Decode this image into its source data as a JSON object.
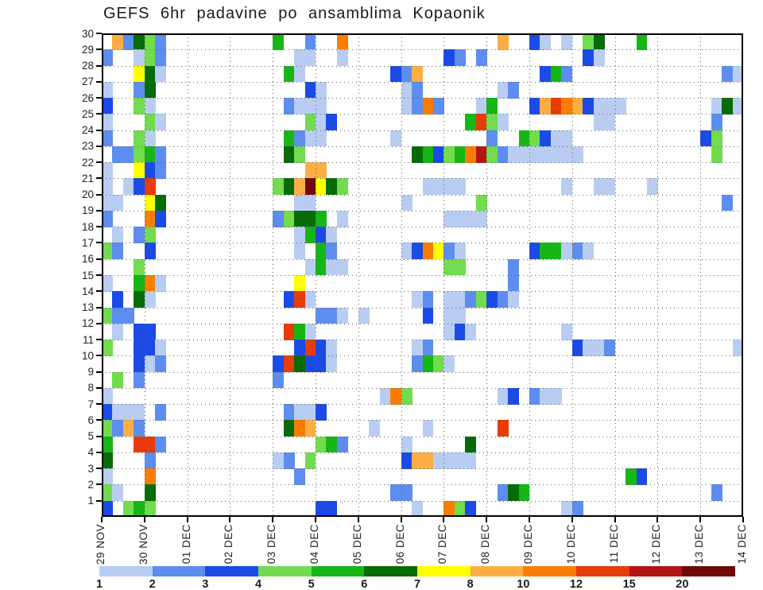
{
  "title": "GEFS 6hr padavine po ansamblima Kopaonik",
  "chart_data": {
    "type": "heatmap",
    "title": "GEFS 6hr padavine po ansamblima Kopaonik",
    "description_visible": "ensemble members (1-30) vs time (6hr steps), colored by 6hr precipitation amount",
    "grid": true,
    "legend_position": "bottom",
    "x_axis": {
      "tick_labels": [
        "29 NOV",
        "30 NOV",
        "01 DEC",
        "02 DEC",
        "03 DEC",
        "04 DEC",
        "05 DEC",
        "06 DEC",
        "07 DEC",
        "08 DEC",
        "09 DEC",
        "10 DEC",
        "11 DEC",
        "12 DEC",
        "13 DEC",
        "14 DEC"
      ],
      "columns_per_day": 4,
      "n_columns": 60
    },
    "y_axis": {
      "tick_labels": [
        "30",
        "29",
        "28",
        "27",
        "26",
        "25",
        "24",
        "23",
        "22",
        "21",
        "20",
        "19",
        "18",
        "17",
        "16",
        "15",
        "14",
        "13",
        "12",
        "11",
        "10",
        "9",
        "8",
        "7",
        "6",
        "5",
        "4",
        "3",
        "2",
        "1"
      ],
      "n_rows": 30
    },
    "colorbar": {
      "tick_labels": [
        "1",
        "2",
        "3",
        "4",
        "5",
        "6",
        "7",
        "8",
        "10",
        "12",
        "15",
        "20"
      ],
      "colors": [
        "#b9cdf3",
        "#5e8df0",
        "#1b4ae6",
        "#72dc4e",
        "#16b616",
        "#076b07",
        "#ffff00",
        "#fcae44",
        "#fa7d02",
        "#e73c06",
        "#b31414",
        "#700909"
      ]
    },
    "cells": [
      [
        30,
        1,
        7
      ],
      [
        30,
        2,
        1
      ],
      [
        30,
        3,
        5
      ],
      [
        30,
        4,
        3
      ],
      [
        30,
        5,
        1
      ],
      [
        30,
        16,
        4
      ],
      [
        30,
        19,
        1
      ],
      [
        30,
        22,
        8
      ],
      [
        30,
        37,
        7
      ],
      [
        30,
        40,
        2
      ],
      [
        30,
        41,
        0
      ],
      [
        30,
        43,
        0
      ],
      [
        30,
        45,
        3
      ],
      [
        30,
        46,
        5
      ],
      [
        30,
        50,
        4
      ],
      [
        29,
        0,
        1
      ],
      [
        29,
        3,
        0
      ],
      [
        29,
        4,
        3
      ],
      [
        29,
        5,
        1
      ],
      [
        29,
        18,
        0
      ],
      [
        29,
        19,
        0
      ],
      [
        29,
        22,
        0
      ],
      [
        29,
        32,
        2
      ],
      [
        29,
        33,
        1
      ],
      [
        29,
        35,
        1
      ],
      [
        29,
        45,
        2
      ],
      [
        29,
        46,
        0
      ],
      [
        28,
        3,
        6
      ],
      [
        28,
        4,
        5
      ],
      [
        28,
        5,
        0
      ],
      [
        28,
        17,
        4
      ],
      [
        28,
        18,
        0
      ],
      [
        28,
        27,
        2
      ],
      [
        28,
        28,
        1
      ],
      [
        28,
        29,
        7
      ],
      [
        28,
        41,
        2
      ],
      [
        28,
        42,
        4
      ],
      [
        28,
        43,
        1
      ],
      [
        28,
        58,
        1
      ],
      [
        28,
        59,
        0
      ],
      [
        27,
        0,
        0
      ],
      [
        27,
        3,
        1
      ],
      [
        27,
        4,
        5
      ],
      [
        27,
        19,
        2
      ],
      [
        27,
        20,
        0
      ],
      [
        27,
        28,
        0
      ],
      [
        27,
        29,
        1
      ],
      [
        27,
        37,
        0
      ],
      [
        27,
        38,
        1
      ],
      [
        26,
        0,
        2
      ],
      [
        26,
        3,
        3
      ],
      [
        26,
        4,
        0
      ],
      [
        26,
        17,
        1
      ],
      [
        26,
        18,
        0
      ],
      [
        26,
        19,
        0
      ],
      [
        26,
        20,
        0
      ],
      [
        26,
        28,
        0
      ],
      [
        26,
        29,
        1
      ],
      [
        26,
        30,
        8
      ],
      [
        26,
        31,
        1
      ],
      [
        26,
        35,
        0
      ],
      [
        26,
        36,
        4
      ],
      [
        26,
        40,
        2
      ],
      [
        26,
        41,
        7
      ],
      [
        26,
        42,
        9
      ],
      [
        26,
        43,
        8
      ],
      [
        26,
        44,
        7
      ],
      [
        26,
        45,
        2
      ],
      [
        26,
        46,
        0
      ],
      [
        26,
        47,
        0
      ],
      [
        26,
        48,
        0
      ],
      [
        26,
        57,
        0
      ],
      [
        26,
        58,
        5
      ],
      [
        26,
        59,
        0
      ],
      [
        25,
        0,
        0
      ],
      [
        25,
        4,
        3
      ],
      [
        25,
        5,
        0
      ],
      [
        25,
        19,
        3
      ],
      [
        25,
        20,
        0
      ],
      [
        25,
        21,
        2
      ],
      [
        25,
        34,
        4
      ],
      [
        25,
        35,
        9
      ],
      [
        25,
        36,
        3
      ],
      [
        25,
        37,
        0
      ],
      [
        25,
        46,
        0
      ],
      [
        25,
        47,
        0
      ],
      [
        25,
        57,
        1
      ],
      [
        24,
        0,
        1
      ],
      [
        24,
        3,
        3
      ],
      [
        24,
        4,
        0
      ],
      [
        24,
        17,
        4
      ],
      [
        24,
        18,
        1
      ],
      [
        24,
        19,
        0
      ],
      [
        24,
        20,
        0
      ],
      [
        24,
        27,
        0
      ],
      [
        24,
        36,
        1
      ],
      [
        24,
        39,
        4
      ],
      [
        24,
        40,
        3
      ],
      [
        24,
        41,
        2
      ],
      [
        24,
        42,
        0
      ],
      [
        24,
        43,
        0
      ],
      [
        24,
        56,
        2
      ],
      [
        24,
        57,
        3
      ],
      [
        23,
        1,
        1
      ],
      [
        23,
        2,
        1
      ],
      [
        23,
        3,
        3
      ],
      [
        23,
        4,
        4
      ],
      [
        23,
        5,
        1
      ],
      [
        23,
        17,
        5
      ],
      [
        23,
        18,
        3
      ],
      [
        23,
        29,
        5
      ],
      [
        23,
        30,
        4
      ],
      [
        23,
        31,
        2
      ],
      [
        23,
        32,
        3
      ],
      [
        23,
        33,
        4
      ],
      [
        23,
        34,
        8
      ],
      [
        23,
        35,
        10
      ],
      [
        23,
        36,
        3
      ],
      [
        23,
        37,
        1
      ],
      [
        23,
        38,
        0
      ],
      [
        23,
        39,
        0
      ],
      [
        23,
        40,
        0
      ],
      [
        23,
        41,
        0
      ],
      [
        23,
        42,
        0
      ],
      [
        23,
        43,
        0
      ],
      [
        23,
        44,
        0
      ],
      [
        23,
        57,
        3
      ],
      [
        22,
        0,
        0
      ],
      [
        22,
        3,
        6
      ],
      [
        22,
        4,
        2
      ],
      [
        22,
        5,
        1
      ],
      [
        22,
        19,
        7
      ],
      [
        22,
        20,
        7
      ],
      [
        21,
        0,
        0
      ],
      [
        21,
        2,
        0
      ],
      [
        21,
        3,
        2
      ],
      [
        21,
        4,
        9
      ],
      [
        21,
        16,
        3
      ],
      [
        21,
        17,
        5
      ],
      [
        21,
        18,
        7
      ],
      [
        21,
        19,
        11
      ],
      [
        21,
        20,
        6
      ],
      [
        21,
        21,
        5
      ],
      [
        21,
        22,
        3
      ],
      [
        21,
        30,
        0
      ],
      [
        21,
        31,
        0
      ],
      [
        21,
        32,
        0
      ],
      [
        21,
        33,
        0
      ],
      [
        21,
        43,
        0
      ],
      [
        21,
        46,
        0
      ],
      [
        21,
        47,
        0
      ],
      [
        21,
        51,
        0
      ],
      [
        20,
        0,
        0
      ],
      [
        20,
        1,
        0
      ],
      [
        20,
        4,
        6
      ],
      [
        20,
        5,
        5
      ],
      [
        20,
        18,
        0
      ],
      [
        20,
        19,
        0
      ],
      [
        20,
        28,
        0
      ],
      [
        20,
        35,
        3
      ],
      [
        20,
        58,
        1
      ],
      [
        19,
        0,
        1
      ],
      [
        19,
        4,
        8
      ],
      [
        19,
        5,
        2
      ],
      [
        19,
        16,
        1
      ],
      [
        19,
        17,
        3
      ],
      [
        19,
        18,
        5
      ],
      [
        19,
        19,
        5
      ],
      [
        19,
        20,
        4
      ],
      [
        19,
        22,
        0
      ],
      [
        19,
        32,
        0
      ],
      [
        19,
        33,
        0
      ],
      [
        19,
        34,
        0
      ],
      [
        19,
        35,
        0
      ],
      [
        18,
        1,
        0
      ],
      [
        18,
        3,
        1
      ],
      [
        18,
        4,
        3
      ],
      [
        18,
        18,
        0
      ],
      [
        18,
        19,
        4
      ],
      [
        18,
        20,
        2
      ],
      [
        18,
        21,
        0
      ],
      [
        17,
        0,
        3
      ],
      [
        17,
        1,
        1
      ],
      [
        17,
        4,
        2
      ],
      [
        17,
        18,
        0
      ],
      [
        17,
        20,
        4
      ],
      [
        17,
        21,
        1
      ],
      [
        17,
        28,
        0
      ],
      [
        17,
        29,
        2
      ],
      [
        17,
        30,
        8
      ],
      [
        17,
        31,
        6
      ],
      [
        17,
        32,
        1
      ],
      [
        17,
        33,
        0
      ],
      [
        17,
        40,
        2
      ],
      [
        17,
        41,
        4
      ],
      [
        17,
        42,
        4
      ],
      [
        17,
        43,
        0
      ],
      [
        17,
        44,
        1
      ],
      [
        17,
        45,
        0
      ],
      [
        16,
        3,
        3
      ],
      [
        16,
        19,
        0
      ],
      [
        16,
        20,
        4
      ],
      [
        16,
        21,
        0
      ],
      [
        16,
        22,
        0
      ],
      [
        16,
        32,
        3
      ],
      [
        16,
        33,
        3
      ],
      [
        16,
        38,
        1
      ],
      [
        15,
        0,
        0
      ],
      [
        15,
        3,
        4
      ],
      [
        15,
        4,
        8
      ],
      [
        15,
        5,
        0
      ],
      [
        15,
        18,
        6
      ],
      [
        15,
        38,
        1
      ],
      [
        14,
        1,
        2
      ],
      [
        14,
        3,
        5
      ],
      [
        14,
        4,
        0
      ],
      [
        14,
        17,
        2
      ],
      [
        14,
        18,
        9
      ],
      [
        14,
        19,
        0
      ],
      [
        14,
        29,
        0
      ],
      [
        14,
        30,
        1
      ],
      [
        14,
        32,
        0
      ],
      [
        14,
        33,
        0
      ],
      [
        14,
        34,
        1
      ],
      [
        14,
        35,
        3
      ],
      [
        14,
        36,
        2
      ],
      [
        14,
        37,
        1
      ],
      [
        14,
        38,
        0
      ],
      [
        13,
        0,
        3
      ],
      [
        13,
        1,
        1
      ],
      [
        13,
        2,
        1
      ],
      [
        13,
        20,
        1
      ],
      [
        13,
        21,
        1
      ],
      [
        13,
        22,
        0
      ],
      [
        13,
        24,
        0
      ],
      [
        13,
        30,
        2
      ],
      [
        13,
        32,
        0
      ],
      [
        13,
        33,
        0
      ],
      [
        12,
        1,
        0
      ],
      [
        12,
        3,
        2
      ],
      [
        12,
        4,
        2
      ],
      [
        12,
        17,
        9
      ],
      [
        12,
        18,
        4
      ],
      [
        12,
        19,
        0
      ],
      [
        12,
        32,
        0
      ],
      [
        12,
        33,
        2
      ],
      [
        12,
        34,
        0
      ],
      [
        12,
        43,
        0
      ],
      [
        11,
        0,
        3
      ],
      [
        11,
        3,
        2
      ],
      [
        11,
        4,
        2
      ],
      [
        11,
        5,
        0
      ],
      [
        11,
        18,
        2
      ],
      [
        11,
        19,
        9
      ],
      [
        11,
        20,
        2
      ],
      [
        11,
        21,
        0
      ],
      [
        11,
        29,
        0
      ],
      [
        11,
        30,
        1
      ],
      [
        11,
        44,
        2
      ],
      [
        11,
        45,
        0
      ],
      [
        11,
        46,
        0
      ],
      [
        11,
        47,
        1
      ],
      [
        11,
        59,
        0
      ],
      [
        10,
        3,
        2
      ],
      [
        10,
        4,
        0
      ],
      [
        10,
        5,
        1
      ],
      [
        10,
        16,
        2
      ],
      [
        10,
        17,
        9
      ],
      [
        10,
        18,
        5
      ],
      [
        10,
        19,
        2
      ],
      [
        10,
        20,
        2
      ],
      [
        10,
        21,
        0
      ],
      [
        10,
        29,
        1
      ],
      [
        10,
        30,
        4
      ],
      [
        10,
        31,
        3
      ],
      [
        10,
        32,
        0
      ],
      [
        9,
        1,
        3
      ],
      [
        9,
        3,
        1
      ],
      [
        9,
        16,
        1
      ],
      [
        8,
        0,
        0
      ],
      [
        8,
        26,
        0
      ],
      [
        8,
        27,
        8
      ],
      [
        8,
        28,
        3
      ],
      [
        8,
        37,
        0
      ],
      [
        8,
        38,
        2
      ],
      [
        8,
        40,
        1
      ],
      [
        8,
        41,
        0
      ],
      [
        8,
        42,
        0
      ],
      [
        7,
        0,
        2
      ],
      [
        7,
        1,
        0
      ],
      [
        7,
        2,
        0
      ],
      [
        7,
        3,
        0
      ],
      [
        7,
        5,
        1
      ],
      [
        7,
        17,
        1
      ],
      [
        7,
        18,
        0
      ],
      [
        7,
        19,
        0
      ],
      [
        7,
        20,
        2
      ],
      [
        6,
        0,
        3
      ],
      [
        6,
        1,
        1
      ],
      [
        6,
        2,
        7
      ],
      [
        6,
        3,
        1
      ],
      [
        6,
        17,
        5
      ],
      [
        6,
        18,
        8
      ],
      [
        6,
        19,
        7
      ],
      [
        6,
        25,
        0
      ],
      [
        6,
        30,
        0
      ],
      [
        6,
        37,
        9
      ],
      [
        5,
        0,
        4
      ],
      [
        5,
        3,
        9
      ],
      [
        5,
        4,
        9
      ],
      [
        5,
        5,
        1
      ],
      [
        5,
        20,
        3
      ],
      [
        5,
        21,
        4
      ],
      [
        5,
        22,
        1
      ],
      [
        5,
        28,
        0
      ],
      [
        5,
        34,
        5
      ],
      [
        4,
        0,
        5
      ],
      [
        4,
        4,
        1
      ],
      [
        4,
        16,
        0
      ],
      [
        4,
        17,
        1
      ],
      [
        4,
        19,
        3
      ],
      [
        4,
        28,
        2
      ],
      [
        4,
        29,
        7
      ],
      [
        4,
        30,
        7
      ],
      [
        4,
        31,
        0
      ],
      [
        4,
        32,
        0
      ],
      [
        4,
        33,
        0
      ],
      [
        4,
        34,
        0
      ],
      [
        3,
        0,
        0
      ],
      [
        3,
        4,
        8
      ],
      [
        3,
        18,
        1
      ],
      [
        3,
        49,
        4
      ],
      [
        3,
        50,
        2
      ],
      [
        2,
        0,
        3
      ],
      [
        2,
        1,
        0
      ],
      [
        2,
        4,
        5
      ],
      [
        2,
        27,
        1
      ],
      [
        2,
        28,
        1
      ],
      [
        2,
        37,
        1
      ],
      [
        2,
        38,
        5
      ],
      [
        2,
        39,
        4
      ],
      [
        2,
        57,
        1
      ],
      [
        1,
        0,
        2
      ],
      [
        1,
        2,
        3
      ],
      [
        1,
        3,
        4
      ],
      [
        1,
        4,
        3
      ],
      [
        1,
        20,
        2
      ],
      [
        1,
        21,
        2
      ],
      [
        1,
        29,
        0
      ],
      [
        1,
        32,
        8
      ],
      [
        1,
        33,
        3
      ],
      [
        1,
        34,
        2
      ],
      [
        1,
        43,
        0
      ],
      [
        1,
        44,
        1
      ]
    ]
  }
}
